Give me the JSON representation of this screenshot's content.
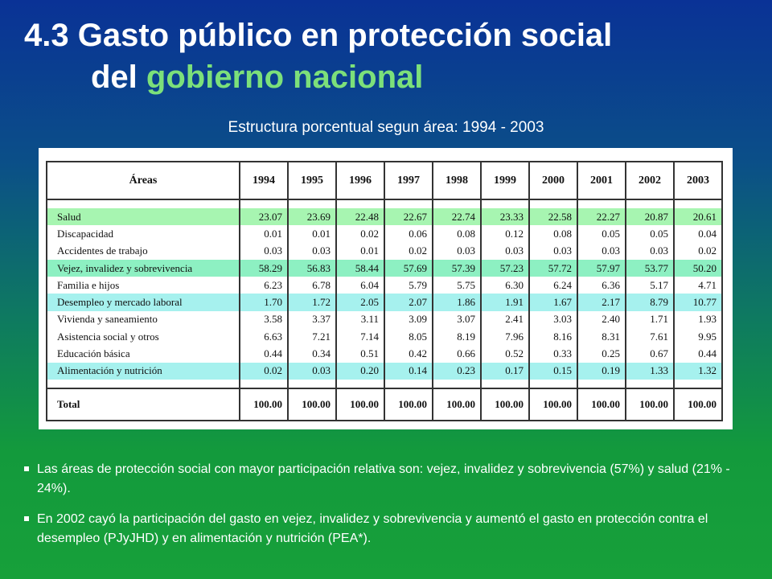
{
  "title": {
    "line1": "4.3 Gasto público en protección social",
    "line2_prefix": "del ",
    "line2_accent": "gobierno nacional"
  },
  "subtitle": "Estructura porcentual segun área:  1994 - 2003",
  "table": {
    "header_area": "Áreas",
    "years": [
      "1994",
      "1995",
      "1996",
      "1997",
      "1998",
      "1999",
      "2000",
      "2001",
      "2002",
      "2003"
    ],
    "rows": [
      {
        "area": "Salud",
        "highlight": "#a7f5b1",
        "values": [
          "23.07",
          "23.69",
          "22.48",
          "22.67",
          "22.74",
          "23.33",
          "22.58",
          "22.27",
          "20.87",
          "20.61"
        ]
      },
      {
        "area": "Discapacidad",
        "highlight": "",
        "values": [
          "0.01",
          "0.01",
          "0.02",
          "0.06",
          "0.08",
          "0.12",
          "0.08",
          "0.05",
          "0.05",
          "0.04"
        ]
      },
      {
        "area": "Accidentes de trabajo",
        "highlight": "",
        "values": [
          "0.03",
          "0.03",
          "0.01",
          "0.02",
          "0.03",
          "0.03",
          "0.03",
          "0.03",
          "0.03",
          "0.02"
        ]
      },
      {
        "area": "Vejez, invalidez y sobrevivencia",
        "highlight": "#8df0c2",
        "values": [
          "58.29",
          "56.83",
          "58.44",
          "57.69",
          "57.39",
          "57.23",
          "57.72",
          "57.97",
          "53.77",
          "50.20"
        ]
      },
      {
        "area": "Familia e hijos",
        "highlight": "",
        "values": [
          "6.23",
          "6.78",
          "6.04",
          "5.79",
          "5.75",
          "6.30",
          "6.24",
          "6.36",
          "5.17",
          "4.71"
        ]
      },
      {
        "area": "Desempleo y mercado laboral",
        "highlight": "#a6f1ee",
        "values": [
          "1.70",
          "1.72",
          "2.05",
          "2.07",
          "1.86",
          "1.91",
          "1.67",
          "2.17",
          "8.79",
          "10.77"
        ]
      },
      {
        "area": "Vivienda y saneamiento",
        "highlight": "",
        "values": [
          "3.58",
          "3.37",
          "3.11",
          "3.09",
          "3.07",
          "2.41",
          "3.03",
          "2.40",
          "1.71",
          "1.93"
        ]
      },
      {
        "area": "Asistencia social y otros",
        "highlight": "",
        "values": [
          "6.63",
          "7.21",
          "7.14",
          "8.05",
          "8.19",
          "7.96",
          "8.16",
          "8.31",
          "7.61",
          "9.95"
        ]
      },
      {
        "area": "Educación básica",
        "highlight": "",
        "values": [
          "0.44",
          "0.34",
          "0.51",
          "0.42",
          "0.66",
          "0.52",
          "0.33",
          "0.25",
          "0.67",
          "0.44"
        ]
      },
      {
        "area": "Alimentación y nutrición",
        "highlight": "#a6f1ee",
        "values": [
          "0.02",
          "0.03",
          "0.20",
          "0.14",
          "0.23",
          "0.17",
          "0.15",
          "0.19",
          "1.33",
          "1.32"
        ]
      }
    ],
    "total": {
      "area": "Total",
      "values": [
        "100.00",
        "100.00",
        "100.00",
        "100.00",
        "100.00",
        "100.00",
        "100.00",
        "100.00",
        "100.00",
        "100.00"
      ]
    }
  },
  "bullets": [
    "Las áreas de protección social con mayor participación relativa son: vejez, invalidez y sobrevivencia (57%) y salud (21% - 24%).",
    "En 2002 cayó la participación del gasto en vejez, invalidez y sobrevivencia y aumentó el gasto en protección contra el desempleo (PJyJHD) y en alimentación y nutrición (PEA*)."
  ],
  "colors": {
    "accent": "#7ce07a",
    "background_top": "#0a3296",
    "background_bottom": "#17a03a"
  }
}
